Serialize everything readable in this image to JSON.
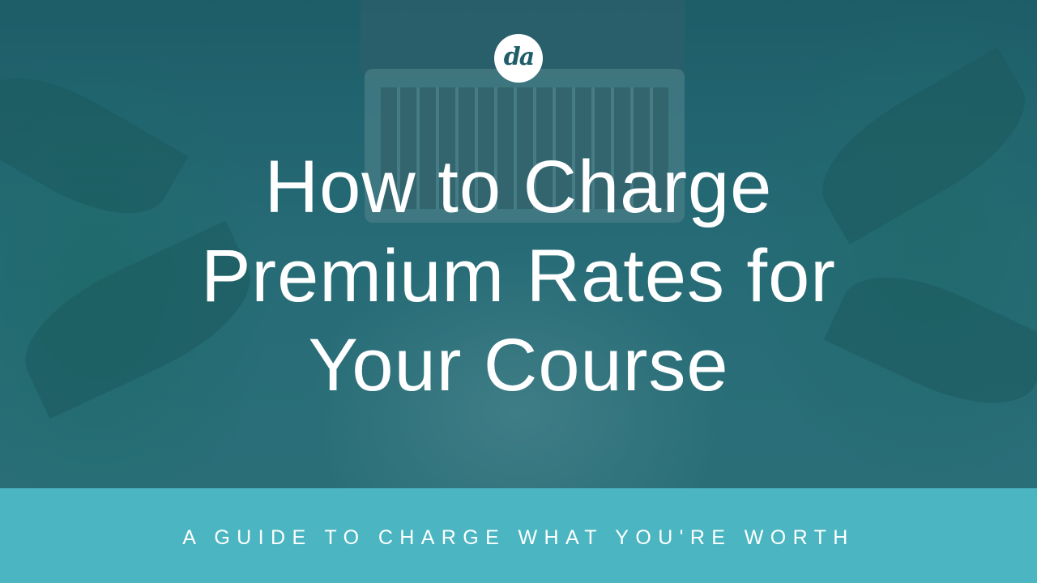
{
  "logo": {
    "text": "da"
  },
  "title": {
    "lines": [
      "How to Charge",
      "Premium Rates for",
      "Your Course"
    ]
  },
  "subtitle": "A GUIDE TO CHARGE WHAT YOU'RE WORTH",
  "colors": {
    "overlay": "#1f5e69",
    "banner": "#4bb6c2",
    "text": "#ffffff"
  }
}
